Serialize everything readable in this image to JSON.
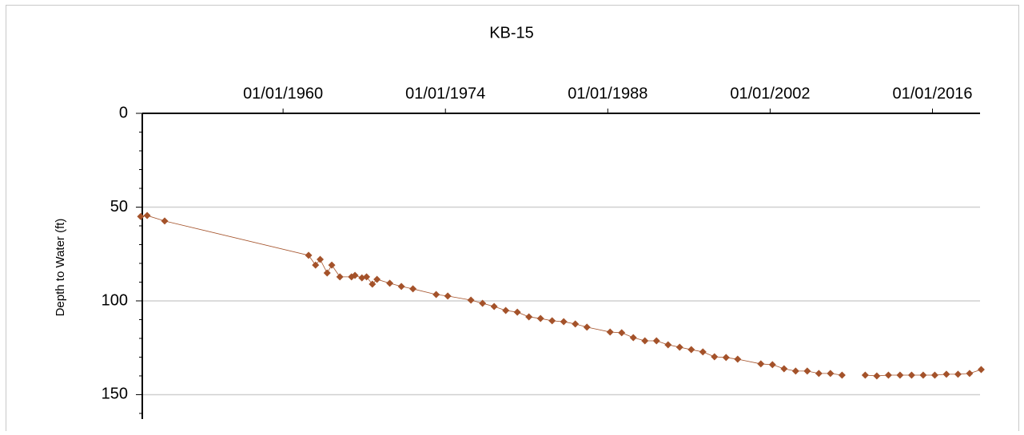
{
  "chart_data": {
    "type": "line",
    "title": "KB-15",
    "y_label": "Depth to Water (ft)",
    "color": "#a4522a",
    "y_inverted": true,
    "grid": true,
    "xlim": [
      1947.86,
      2020.1
    ],
    "ylim": [
      0,
      163
    ],
    "xticks": [
      {
        "value": 1960,
        "label": "01/01/1960"
      },
      {
        "value": 1974,
        "label": "01/01/1974"
      },
      {
        "value": 1988,
        "label": "01/01/1988"
      },
      {
        "value": 2002,
        "label": "01/01/2002"
      },
      {
        "value": 2016,
        "label": "01/01/2016"
      }
    ],
    "yticks": [
      0,
      50,
      100,
      150
    ],
    "minor_yticks": [
      10,
      20,
      30,
      40,
      60,
      70,
      80,
      90,
      110,
      120,
      130,
      140,
      160
    ],
    "x": [
      1947.72,
      1948.28,
      1949.79,
      1962.2,
      1962.8,
      1963.2,
      1963.8,
      1964.2,
      1964.9,
      1965.9,
      1966.2,
      1966.8,
      1967.2,
      1967.7,
      1968.1,
      1969.2,
      1970.2,
      1971.2,
      1973.2,
      1974.2,
      1976.2,
      1977.2,
      1978.2,
      1979.2,
      1980.2,
      1981.2,
      1982.2,
      1983.2,
      1984.2,
      1985.2,
      1986.2,
      1988.2,
      1989.2,
      1990.2,
      1991.2,
      1992.2,
      1993.2,
      1994.2,
      1995.2,
      1996.2,
      1997.2,
      1998.2,
      1999.2,
      2001.2,
      2002.2,
      2003.2,
      2004.2,
      2005.2,
      2006.2,
      2007.2,
      2008.2,
      null,
      2010.2,
      2011.2,
      2012.2,
      2013.2,
      2014.2,
      2015.2,
      2016.2,
      2017.2,
      2018.2,
      2019.2,
      2020.2
    ],
    "values": [
      55,
      54.5,
      57.4,
      75.7,
      80.9,
      77.9,
      85.1,
      80.9,
      87.2,
      87.2,
      86.4,
      87.7,
      87.2,
      91.1,
      88.5,
      90.6,
      92.3,
      93.6,
      96.6,
      97.4,
      99.6,
      101.3,
      103.0,
      105.1,
      106.0,
      108.5,
      109.4,
      110.6,
      111.1,
      112.3,
      114.0,
      116.6,
      117.0,
      119.6,
      121.3,
      121.3,
      123.4,
      124.7,
      126.0,
      127.2,
      129.8,
      130.2,
      131.1,
      133.6,
      134.0,
      136.2,
      137.4,
      137.4,
      138.7,
      138.7,
      139.6,
      null,
      139.6,
      140.0,
      139.6,
      139.6,
      139.6,
      139.6,
      139.6,
      139.1,
      139.1,
      138.7,
      136.6
    ]
  }
}
